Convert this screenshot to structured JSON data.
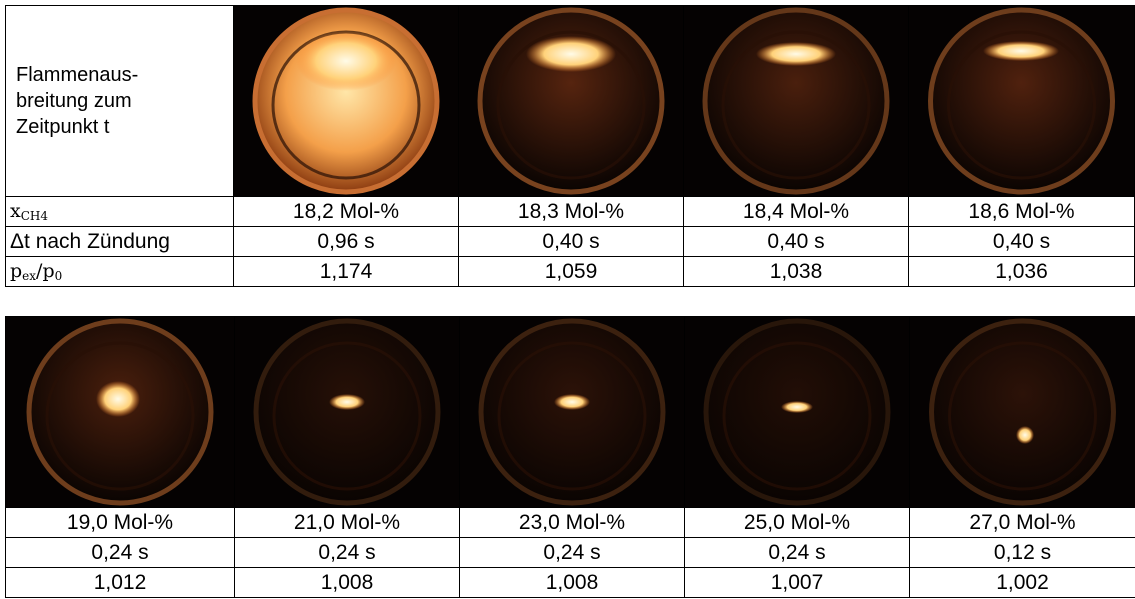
{
  "header_cell": {
    "lines": [
      "Flammenaus-",
      "breitung zum",
      "Zeitpunkt t"
    ]
  },
  "row_labels": [
    [
      {
        "text": "x"
      },
      {
        "text": "CH4",
        "sub": true
      }
    ],
    [
      {
        "text": "Δt nach Zündung"
      }
    ],
    [
      {
        "text": "p"
      },
      {
        "text": "ex",
        "sub": true
      },
      {
        "text": "/p"
      },
      {
        "text": "0",
        "sub": true
      }
    ]
  ],
  "top": {
    "columns": [
      {
        "x_ch4": "18,2 Mol-%",
        "dt": "0,96 s",
        "p_ratio": "1,174"
      },
      {
        "x_ch4": "18,3 Mol-%",
        "dt": "0,40 s",
        "p_ratio": "1,059"
      },
      {
        "x_ch4": "18,4 Mol-%",
        "dt": "0,40 s",
        "p_ratio": "1,038"
      },
      {
        "x_ch4": "18,6 Mol-%",
        "dt": "0,40 s",
        "p_ratio": "1,036"
      }
    ]
  },
  "bottom": {
    "columns": [
      {
        "x_ch4": "19,0 Mol-%",
        "dt": "0,24 s",
        "p_ratio": "1,012"
      },
      {
        "x_ch4": "21,0 Mol-%",
        "dt": "0,24 s",
        "p_ratio": "1,008"
      },
      {
        "x_ch4": "23,0 Mol-%",
        "dt": "0,24 s",
        "p_ratio": "1,008"
      },
      {
        "x_ch4": "25,0 Mol-%",
        "dt": "0,24 s",
        "p_ratio": "1,007"
      },
      {
        "x_ch4": "27,0 Mol-%",
        "dt": "0,12 s",
        "p_ratio": "1,002"
      }
    ]
  }
}
